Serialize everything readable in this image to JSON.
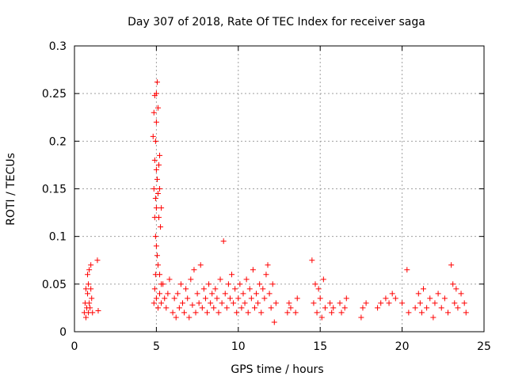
{
  "chart_data": {
    "type": "scatter",
    "title": "Day 307 of 2018, Rate Of TEC Index for receiver saga",
    "xlabel": "GPS time / hours",
    "ylabel": "ROTI / TECUs",
    "xlim": [
      0,
      25
    ],
    "ylim": [
      0,
      0.3
    ],
    "x_ticks": [
      0,
      5,
      10,
      15,
      20,
      25
    ],
    "x_tick_labels": [
      "0",
      "5",
      "10",
      "15",
      "20",
      "25"
    ],
    "y_ticks": [
      0,
      0.05,
      0.1,
      0.15,
      0.2,
      0.25,
      0.3
    ],
    "y_tick_labels": [
      "0",
      "0.05",
      "0.1",
      "0.15",
      "0.2",
      "0.25",
      "0.3"
    ],
    "grid": true,
    "marker": "plus",
    "marker_color": "#ff0000",
    "points": [
      [
        0.6,
        0.02
      ],
      [
        0.65,
        0.03
      ],
      [
        0.7,
        0.015
      ],
      [
        0.7,
        0.045
      ],
      [
        0.75,
        0.025
      ],
      [
        0.8,
        0.04
      ],
      [
        0.8,
        0.06
      ],
      [
        0.85,
        0.02
      ],
      [
        0.85,
        0.05
      ],
      [
        0.9,
        0.03
      ],
      [
        0.9,
        0.065
      ],
      [
        0.95,
        0.025
      ],
      [
        1.0,
        0.045
      ],
      [
        1.0,
        0.07
      ],
      [
        1.05,
        0.035
      ],
      [
        1.1,
        0.02
      ],
      [
        1.4,
        0.075
      ],
      [
        1.45,
        0.022
      ],
      [
        4.8,
        0.205
      ],
      [
        4.85,
        0.15
      ],
      [
        4.85,
        0.23
      ],
      [
        4.9,
        0.12
      ],
      [
        4.9,
        0.18
      ],
      [
        4.9,
        0.248
      ],
      [
        4.95,
        0.1
      ],
      [
        4.95,
        0.14
      ],
      [
        4.95,
        0.2
      ],
      [
        5.0,
        0.25
      ],
      [
        5.0,
        0.09
      ],
      [
        5.0,
        0.13
      ],
      [
        5.0,
        0.17
      ],
      [
        5.0,
        0.22
      ],
      [
        5.05,
        0.262
      ],
      [
        5.05,
        0.08
      ],
      [
        5.05,
        0.16
      ],
      [
        5.1,
        0.07
      ],
      [
        5.1,
        0.145
      ],
      [
        5.1,
        0.235
      ],
      [
        5.15,
        0.12
      ],
      [
        5.15,
        0.175
      ],
      [
        5.2,
        0.06
      ],
      [
        5.2,
        0.15
      ],
      [
        5.2,
        0.185
      ],
      [
        5.25,
        0.11
      ],
      [
        5.3,
        0.05
      ],
      [
        5.3,
        0.13
      ],
      [
        4.85,
        0.03
      ],
      [
        4.9,
        0.045
      ],
      [
        4.95,
        0.06
      ],
      [
        5.0,
        0.035
      ],
      [
        5.1,
        0.025
      ],
      [
        5.2,
        0.04
      ],
      [
        5.3,
        0.03
      ],
      [
        5.4,
        0.05
      ],
      [
        5.5,
        0.035
      ],
      [
        5.6,
        0.025
      ],
      [
        5.7,
        0.04
      ],
      [
        5.8,
        0.055
      ],
      [
        6.0,
        0.02
      ],
      [
        6.1,
        0.035
      ],
      [
        6.2,
        0.015
      ],
      [
        6.3,
        0.04
      ],
      [
        6.4,
        0.025
      ],
      [
        6.5,
        0.05
      ],
      [
        6.6,
        0.03
      ],
      [
        6.7,
        0.02
      ],
      [
        6.8,
        0.045
      ],
      [
        6.9,
        0.035
      ],
      [
        7.0,
        0.015
      ],
      [
        7.1,
        0.055
      ],
      [
        7.2,
        0.028
      ],
      [
        7.3,
        0.065
      ],
      [
        7.4,
        0.02
      ],
      [
        7.5,
        0.04
      ],
      [
        7.6,
        0.03
      ],
      [
        7.7,
        0.07
      ],
      [
        7.8,
        0.025
      ],
      [
        7.9,
        0.045
      ],
      [
        8.0,
        0.035
      ],
      [
        8.1,
        0.02
      ],
      [
        8.2,
        0.05
      ],
      [
        8.3,
        0.03
      ],
      [
        8.4,
        0.04
      ],
      [
        8.5,
        0.025
      ],
      [
        8.6,
        0.045
      ],
      [
        8.7,
        0.035
      ],
      [
        8.8,
        0.02
      ],
      [
        8.9,
        0.055
      ],
      [
        9.0,
        0.03
      ],
      [
        9.1,
        0.095
      ],
      [
        9.2,
        0.04
      ],
      [
        9.3,
        0.025
      ],
      [
        9.4,
        0.05
      ],
      [
        9.5,
        0.035
      ],
      [
        9.6,
        0.06
      ],
      [
        9.7,
        0.03
      ],
      [
        9.8,
        0.045
      ],
      [
        9.9,
        0.02
      ],
      [
        10.0,
        0.035
      ],
      [
        10.1,
        0.05
      ],
      [
        10.2,
        0.025
      ],
      [
        10.3,
        0.04
      ],
      [
        10.4,
        0.03
      ],
      [
        10.5,
        0.055
      ],
      [
        10.6,
        0.02
      ],
      [
        10.7,
        0.045
      ],
      [
        10.8,
        0.035
      ],
      [
        10.9,
        0.065
      ],
      [
        11.0,
        0.025
      ],
      [
        11.1,
        0.04
      ],
      [
        11.2,
        0.03
      ],
      [
        11.3,
        0.05
      ],
      [
        11.4,
        0.02
      ],
      [
        11.5,
        0.045
      ],
      [
        11.6,
        0.035
      ],
      [
        11.7,
        0.06
      ],
      [
        11.8,
        0.07
      ],
      [
        11.9,
        0.04
      ],
      [
        12.0,
        0.025
      ],
      [
        12.1,
        0.05
      ],
      [
        12.2,
        0.01
      ],
      [
        12.3,
        0.03
      ],
      [
        13.0,
        0.02
      ],
      [
        13.1,
        0.03
      ],
      [
        13.2,
        0.025
      ],
      [
        13.5,
        0.02
      ],
      [
        13.6,
        0.035
      ],
      [
        14.5,
        0.075
      ],
      [
        14.6,
        0.03
      ],
      [
        14.7,
        0.05
      ],
      [
        14.8,
        0.02
      ],
      [
        14.9,
        0.045
      ],
      [
        15.0,
        0.035
      ],
      [
        15.1,
        0.015
      ],
      [
        15.2,
        0.055
      ],
      [
        15.3,
        0.025
      ],
      [
        15.6,
        0.03
      ],
      [
        15.7,
        0.02
      ],
      [
        15.8,
        0.025
      ],
      [
        16.2,
        0.03
      ],
      [
        16.3,
        0.02
      ],
      [
        16.5,
        0.025
      ],
      [
        16.6,
        0.035
      ],
      [
        17.5,
        0.015
      ],
      [
        17.6,
        0.025
      ],
      [
        17.8,
        0.03
      ],
      [
        18.5,
        0.025
      ],
      [
        18.7,
        0.03
      ],
      [
        19.0,
        0.035
      ],
      [
        19.2,
        0.03
      ],
      [
        19.4,
        0.04
      ],
      [
        19.6,
        0.035
      ],
      [
        20.0,
        0.03
      ],
      [
        20.3,
        0.065
      ],
      [
        20.4,
        0.02
      ],
      [
        20.8,
        0.025
      ],
      [
        21.0,
        0.04
      ],
      [
        21.1,
        0.03
      ],
      [
        21.2,
        0.02
      ],
      [
        21.3,
        0.045
      ],
      [
        21.5,
        0.025
      ],
      [
        21.7,
        0.035
      ],
      [
        21.9,
        0.015
      ],
      [
        22.0,
        0.03
      ],
      [
        22.2,
        0.04
      ],
      [
        22.4,
        0.025
      ],
      [
        22.6,
        0.035
      ],
      [
        22.8,
        0.02
      ],
      [
        23.0,
        0.07
      ],
      [
        23.1,
        0.05
      ],
      [
        23.2,
        0.03
      ],
      [
        23.3,
        0.045
      ],
      [
        23.4,
        0.025
      ],
      [
        23.6,
        0.04
      ],
      [
        23.8,
        0.03
      ],
      [
        23.9,
        0.02
      ]
    ]
  }
}
